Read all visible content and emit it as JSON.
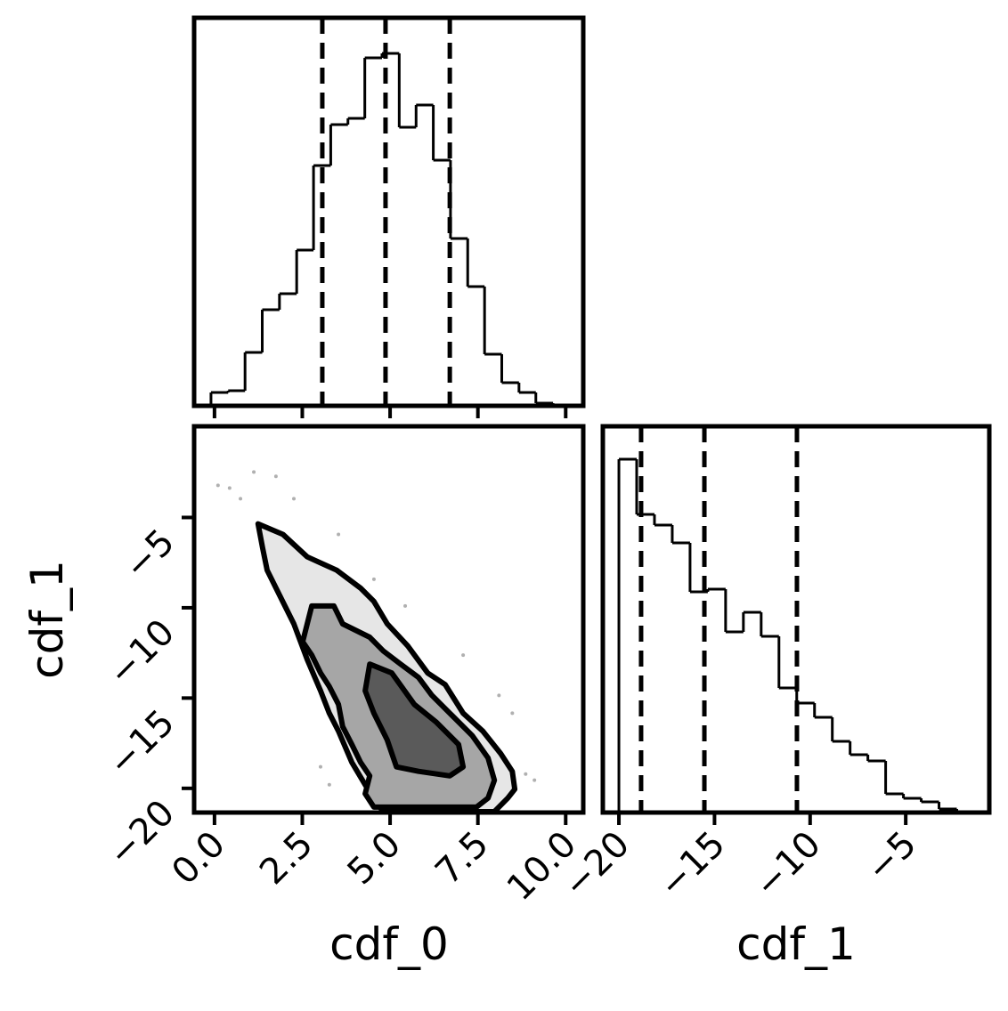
{
  "chart_data": [
    {
      "type": "histogram",
      "bins": [
        -0.1,
        0.39,
        0.87,
        1.36,
        1.85,
        2.34,
        2.82,
        3.31,
        3.8,
        4.28,
        4.77,
        5.26,
        5.74,
        6.23,
        6.72,
        7.21,
        7.69,
        8.18,
        8.67,
        9.15,
        9.64,
        10.13
      ],
      "values": [
        15,
        17,
        60,
        108,
        126,
        175,
        270,
        316,
        323,
        391,
        396,
        313,
        338,
        276,
        188,
        134,
        58,
        26,
        15,
        3,
        1
      ],
      "quantiles": [
        3.07,
        4.87,
        6.7
      ],
      "color": "#000000",
      "xlim": [
        -0.58,
        10.5
      ],
      "ylim": [
        0,
        436
      ],
      "xticks": [
        0,
        2.5,
        5,
        7.5,
        10
      ]
    },
    {
      "type": "contour",
      "xlabel": "cdf_0",
      "ylabel": "cdf_1",
      "xlim": [
        -0.58,
        10.5
      ],
      "ylim": [
        -21.34,
        0.05
      ],
      "xticks": [
        {
          "value": 0,
          "label": "0.0"
        },
        2.5,
        {
          "value": 5,
          "label": "5.0"
        },
        7.5,
        {
          "value": 10,
          "label": "10.0"
        }
      ],
      "yticks": [
        {
          "value": -5,
          "label": "−5"
        },
        {
          "value": -10,
          "label": "−10"
        },
        {
          "value": -15,
          "label": "−15"
        },
        {
          "value": -20,
          "label": "−20"
        }
      ],
      "contours": [
        {
          "fill": "#e6e6e6",
          "x": [
            1.24,
            1.95,
            2.64,
            3.48,
            4.16,
            4.54,
            4.92,
            5.51,
            6.07,
            6.57,
            7.08,
            7.64,
            8.15,
            8.48,
            8.55,
            8.35,
            7.97,
            4.8,
            4.29,
            3.91,
            3.53,
            3.27,
            3.02,
            2.64,
            2.26,
            1.88,
            1.5,
            1.37,
            1.24
          ],
          "y": [
            -5.35,
            -5.94,
            -7.18,
            -7.92,
            -8.91,
            -9.65,
            -10.89,
            -12.13,
            -13.61,
            -14.26,
            -15.84,
            -16.83,
            -18.07,
            -19.06,
            -20.05,
            -20.54,
            -21.29,
            -21.29,
            -19.8,
            -18.56,
            -16.83,
            -15.84,
            -14.6,
            -12.87,
            -10.89,
            -9.41,
            -7.92,
            -6.68,
            -5.35
          ]
        },
        {
          "fill": "#a6a6a6",
          "x": [
            2.77,
            3.4,
            3.65,
            4.42,
            4.8,
            5.3,
            5.81,
            6.19,
            6.7,
            7.34,
            7.79,
            7.97,
            7.79,
            7.46,
            6.07,
            4.54,
            4.29,
            4.42,
            4.16,
            3.91,
            3.65,
            3.53,
            3.27,
            3.02,
            2.77,
            2.51,
            2.64,
            2.77
          ],
          "y": [
            -9.9,
            -9.9,
            -10.89,
            -11.63,
            -12.38,
            -13.12,
            -13.86,
            -14.85,
            -15.84,
            -17.08,
            -18.32,
            -19.55,
            -20.54,
            -21.04,
            -21.04,
            -21.04,
            -20.3,
            -19.31,
            -18.56,
            -17.57,
            -16.58,
            -15.35,
            -14.36,
            -13.61,
            -12.62,
            -11.88,
            -10.89,
            -9.9
          ]
        },
        {
          "fill": "#5a5a5a",
          "x": [
            4.42,
            5.05,
            5.69,
            6.32,
            6.95,
            7.08,
            6.7,
            5.81,
            5.18,
            4.92,
            4.54,
            4.29,
            4.42
          ],
          "y": [
            -13.12,
            -13.61,
            -15.35,
            -16.34,
            -17.57,
            -18.81,
            -19.31,
            -19.06,
            -18.81,
            -17.33,
            -15.84,
            -14.6,
            -13.12
          ]
        }
      ],
      "points": {
        "color": "#b0b0b0",
        "x": [
          0.1,
          0.43,
          1.12,
          1.75,
          2.26,
          0.74,
          4.54,
          5.43,
          7.08,
          8.1,
          8.48,
          9.11,
          8.86,
          3.27,
          3.02,
          3.53
        ],
        "y": [
          -3.22,
          -3.37,
          -2.48,
          -2.72,
          -3.96,
          -3.96,
          -8.42,
          -9.9,
          -12.62,
          -14.85,
          -15.84,
          -19.55,
          -19.21,
          -19.8,
          -18.81,
          -5.94
        ]
      }
    },
    {
      "type": "histogram",
      "xlabel": "cdf_1",
      "bins": [
        -20,
        -19.07,
        -18.14,
        -17.21,
        -16.28,
        -15.35,
        -14.42,
        -13.49,
        -12.56,
        -11.63,
        -10.7,
        -9.77,
        -8.84,
        -7.91,
        -6.98,
        -6.05,
        -5.12,
        -4.19,
        -3.26,
        -2.33,
        -1.4
      ],
      "values": [
        397,
        335,
        323,
        303,
        248,
        251,
        203,
        225,
        198,
        140,
        123,
        107,
        80,
        65,
        58,
        21,
        16,
        12,
        4,
        1
      ],
      "quantiles": [
        -18.84,
        -15.53,
        -10.69
      ],
      "color": "#000000",
      "xlim": [
        -20.84,
        -0.63
      ],
      "ylim": [
        0,
        434
      ],
      "xticks": [
        {
          "value": -20,
          "label": "−20"
        },
        {
          "value": -15,
          "label": "−15"
        },
        {
          "value": -10,
          "label": "−10"
        },
        {
          "value": -5,
          "label": "−5"
        }
      ]
    }
  ]
}
